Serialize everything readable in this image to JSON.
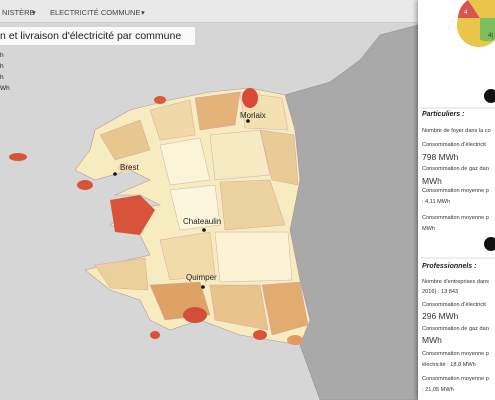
{
  "nav": {
    "items": [
      "NISTÈRE",
      "ELECTRICITÉ COMMUNE"
    ]
  },
  "map": {
    "title": "n et livraison d'électricité par commune",
    "legend": [
      "h",
      "h",
      "h",
      "Wh"
    ],
    "cities": [
      "Morlaix",
      "Brest",
      "Chateaulin",
      "Quimper"
    ]
  },
  "panel": {
    "pie_labels": [
      "4",
      "4("
    ],
    "particuliers": {
      "title": "Particuliers :",
      "lines": [
        "Nombre de foyer dans la co",
        "Consommation d'électricit",
        "798 MWh",
        "Consommation de gaz dan",
        "MWh",
        "Consommation moyenne p",
        ": 4,11 MWh",
        "Consommation moyenne p",
        "MWh"
      ]
    },
    "professionnels": {
      "title": "Professionnels :",
      "lines": [
        "Nombre d'entreprises dans",
        "2016) : 13 843",
        "Consommation d'électricit",
        "296 MWh",
        "Consommation de gaz dan",
        "MWh",
        "Consommation moyenne p",
        "électricité : 18,8 MWh",
        "Consommation moyenne p",
        ": 21,05 MWh"
      ]
    }
  }
}
